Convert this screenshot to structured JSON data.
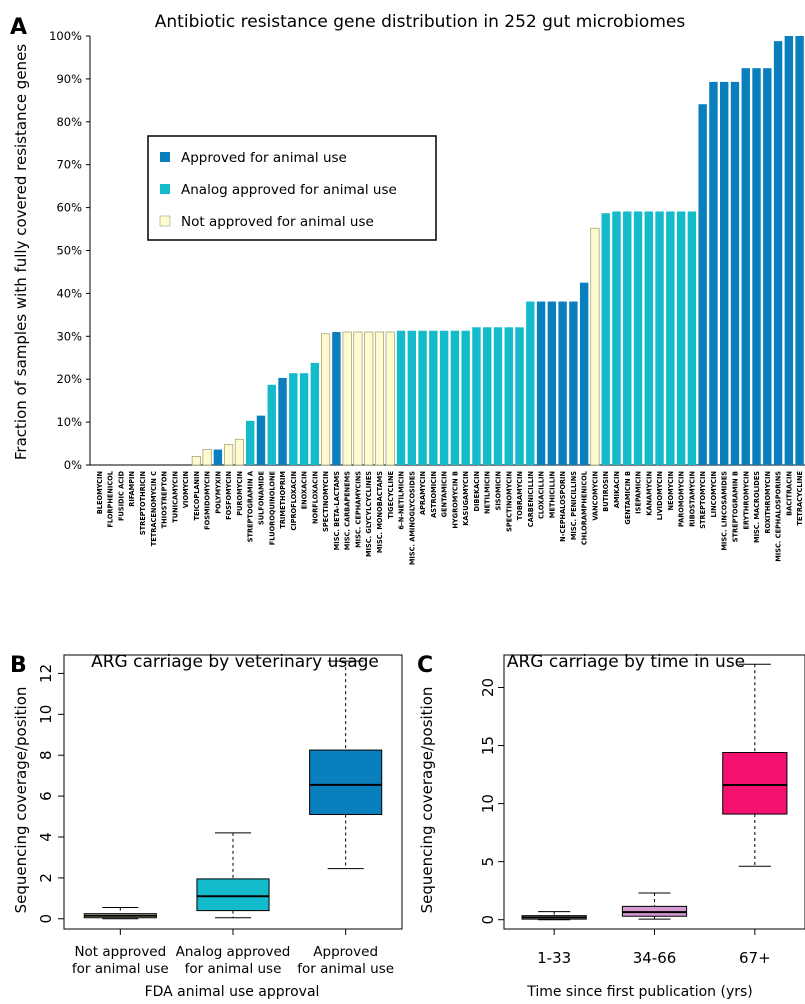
{
  "panel_labels": {
    "a": "A",
    "b": "B",
    "c": "C"
  },
  "colors": {
    "approved": "#0a7fbd",
    "analog": "#14bccb",
    "not_approved": "#fdfbcf",
    "box_b_not": "#d6d8a7",
    "box_b_analog": "#14bccb",
    "box_b_approved": "#0a7fbd",
    "box_c_1": "#d8bdd4",
    "box_c_2": "#d49ad2",
    "box_c_3": "#f4116f"
  },
  "chart_data": [
    {
      "type": "bar",
      "title": "Antibiotic resistance gene distribution in 252 gut microbiomes",
      "xlabel": "",
      "ylabel": "Fraction of samples with fully covered resistance genes",
      "ylim": [
        0,
        100
      ],
      "yticks": [
        "0%",
        "10%",
        "20%",
        "30%",
        "40%",
        "50%",
        "60%",
        "70%",
        "80%",
        "90%",
        "100%"
      ],
      "legend": {
        "position": "upper-left",
        "entries": [
          {
            "key": "approved",
            "label": "Approved for animal use"
          },
          {
            "key": "analog",
            "label": "Analog approved for animal use"
          },
          {
            "key": "not_approved",
            "label": "Not approved for animal use"
          }
        ]
      },
      "categories": [
        "BLEOMYCIN",
        "FLORPHENICOL",
        "FUSIDIC ACID",
        "RIFAMPIN",
        "STREPTOTHRICIN",
        "TETRACENOMYCIN C",
        "THIOSTREPTON",
        "TUNICAMYCIN",
        "VIOMYCIN",
        "TEICOPLANIN",
        "FOSMIDOMYCIN",
        "POLYMYXIN",
        "FOSFOMYCIN",
        "PUROMYCIN",
        "STREPTOGRAMIN A",
        "SULFONAMIDE",
        "FLUOROQUINOLONE",
        "TRIMETHOPRIM",
        "CIPROFLOXACIN",
        "ENOXACIN",
        "NORFLOXACIN",
        "SPECTINOMYCIN",
        "MISC. BETA-LACTAMS",
        "MISC. CARBAPENEMS",
        "MISC. CEPHAMYCINS",
        "MISC. GLYCYLCYCLINES",
        "MISC. MONOBACTAMS",
        "TIGECYCLINE",
        "6-N-NETILMICIN",
        "MISC. AMINOGLYCOSIDES",
        "APRAMYCIN",
        "ASTROMICIN",
        "GENTAMICIN",
        "HYGROMYCIN B",
        "KASUGAMYCIN",
        "DIBEKACIN",
        "NETILMICIN",
        "SISOMICIN",
        "SPECTINOMYCIN",
        "TOBRAMYCIN",
        "CARBENICILLIN",
        "CLOXACILLIN",
        "METHICILLIN",
        "N-CEPHALOSPORIN",
        "MISC. PENICILLINS",
        "CHLORAMPHENICOL",
        "VANCOMYCIN",
        "BUTIROSIN",
        "AMIKACIN",
        "GENTAMICIN B",
        "ISEPAMICIN",
        "KANAMYCIN",
        "LIVIDOMYCIN",
        "NEOMYCIN",
        "PAROMOMYCIN",
        "RIBOSTAMYCIN",
        "STREPTOMYCIN",
        "LINCOMYCIN",
        "MISC. LINCOSAMIDES",
        "STREPTOGRAMIN B",
        "ERYTHROMYCIN",
        "MISC. MACROLIDES",
        "ROXITHROMYCIN",
        "MISC. CEPHALOSPORINS",
        "BACITRACIN",
        "TETRACYCLINE"
      ],
      "values": [
        0,
        0,
        0,
        0,
        0,
        0,
        0,
        0,
        0,
        2,
        3.6,
        3.6,
        4.8,
        6,
        10.3,
        11.5,
        18.7,
        20.3,
        21.4,
        21.4,
        23.8,
        30.6,
        31,
        31,
        31,
        31,
        31,
        31,
        31.3,
        31.3,
        31.3,
        31.3,
        31.3,
        31.3,
        31.3,
        32.1,
        32.1,
        32.1,
        32.1,
        32.1,
        38.1,
        38.1,
        38.1,
        38.1,
        38.1,
        42.5,
        55.2,
        58.7,
        59.1,
        59.1,
        59.1,
        59.1,
        59.1,
        59.1,
        59.1,
        59.1,
        84.1,
        89.3,
        89.3,
        89.3,
        92.5,
        92.5,
        92.5,
        98.8,
        100,
        100
      ],
      "status": [
        "not_approved",
        "not_approved",
        "not_approved",
        "not_approved",
        "not_approved",
        "not_approved",
        "not_approved",
        "not_approved",
        "not_approved",
        "not_approved",
        "not_approved",
        "approved",
        "not_approved",
        "not_approved",
        "analog",
        "approved",
        "analog",
        "approved",
        "analog",
        "analog",
        "analog",
        "not_approved",
        "approved",
        "not_approved",
        "not_approved",
        "not_approved",
        "not_approved",
        "not_approved",
        "analog",
        "analog",
        "analog",
        "analog",
        "analog",
        "analog",
        "analog",
        "analog",
        "analog",
        "analog",
        "analog",
        "analog",
        "analog",
        "approved",
        "approved",
        "approved",
        "approved",
        "approved",
        "not_approved",
        "analog",
        "analog",
        "analog",
        "analog",
        "analog",
        "analog",
        "analog",
        "analog",
        "analog",
        "approved",
        "approved",
        "approved",
        "approved",
        "approved",
        "approved",
        "approved",
        "approved",
        "approved",
        "approved"
      ]
    },
    {
      "type": "box",
      "title": "ARG carriage by veterinary usage",
      "xlabel": "FDA animal use approval",
      "ylabel": "Sequencing coverage/position",
      "ylim": [
        -0.5,
        12.9
      ],
      "yticks": [
        0,
        2,
        4,
        6,
        8,
        10,
        12
      ],
      "groups": [
        {
          "label_line1": "Not approved",
          "label_line2": "for animal use",
          "color_key": "box_b_not",
          "min": 0,
          "q1": 0.05,
          "median": 0.15,
          "q3": 0.25,
          "max": 0.55
        },
        {
          "label_line1": "Analog approved",
          "label_line2": "for animal use",
          "color_key": "box_b_analog",
          "min": 0.05,
          "q1": 0.4,
          "median": 1.1,
          "q3": 1.95,
          "max": 4.2
        },
        {
          "label_line1": "Approved",
          "label_line2": "for animal use",
          "color_key": "box_b_approved",
          "min": 2.45,
          "q1": 5.1,
          "median": 6.55,
          "q3": 8.25,
          "max": 12.6
        }
      ]
    },
    {
      "type": "box",
      "title": "ARG carriage by time in use",
      "xlabel": "Time since first publication (yrs)",
      "ylabel": "Sequencing coverage/position",
      "ylim": [
        -0.8,
        22.8
      ],
      "yticks": [
        0,
        5,
        10,
        15,
        20
      ],
      "groups": [
        {
          "label_line1": "1-33",
          "label_line2": "",
          "color_key": "box_c_1",
          "min": 0,
          "q1": 0.05,
          "median": 0.2,
          "q3": 0.35,
          "max": 0.7
        },
        {
          "label_line1": "34-66",
          "label_line2": "",
          "color_key": "box_c_2",
          "min": 0.05,
          "q1": 0.3,
          "median": 0.65,
          "q3": 1.15,
          "max": 2.3
        },
        {
          "label_line1": "67+",
          "label_line2": "",
          "color_key": "box_c_3",
          "min": 4.6,
          "q1": 9.1,
          "median": 11.6,
          "q3": 14.4,
          "max": 22
        }
      ]
    }
  ]
}
